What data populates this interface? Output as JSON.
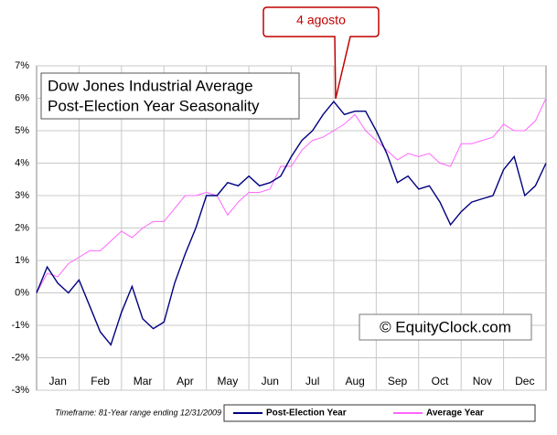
{
  "chart_data": {
    "type": "line",
    "title": [
      "Dow Jones Industrial Average",
      "Post-Election Year Seasonality"
    ],
    "watermark": "© EquityClock.com",
    "annotation": "4 agosto",
    "footnote": "Timeframe: 81-Year range ending 12/31/2009",
    "x": [
      0,
      0.25,
      0.5,
      0.75,
      1,
      1.25,
      1.5,
      1.75,
      2,
      2.25,
      2.5,
      2.75,
      3,
      3.25,
      3.5,
      3.75,
      4,
      4.25,
      4.5,
      4.75,
      5,
      5.25,
      5.5,
      5.75,
      6,
      6.25,
      6.5,
      6.75,
      7,
      7.25,
      7.5,
      7.75,
      8,
      8.25,
      8.5,
      8.75,
      9,
      9.25,
      9.5,
      9.75,
      10,
      10.25,
      10.5,
      10.75,
      11,
      11.25,
      11.5,
      11.75,
      12
    ],
    "xlim": [
      0,
      12
    ],
    "xticks": [
      {
        "value": 0.5,
        "label": "Jan"
      },
      {
        "value": 1.5,
        "label": "Feb"
      },
      {
        "value": 2.5,
        "label": "Mar"
      },
      {
        "value": 3.5,
        "label": "Apr"
      },
      {
        "value": 4.5,
        "label": "May"
      },
      {
        "value": 5.5,
        "label": "Jun"
      },
      {
        "value": 6.5,
        "label": "Jul"
      },
      {
        "value": 7.5,
        "label": "Aug"
      },
      {
        "value": 8.5,
        "label": "Sep"
      },
      {
        "value": 9.5,
        "label": "Oct"
      },
      {
        "value": 10.5,
        "label": "Nov"
      },
      {
        "value": 11.5,
        "label": "Dec"
      }
    ],
    "ylim": [
      -3,
      7
    ],
    "yticks": [
      {
        "value": -3,
        "label": "-3%"
      },
      {
        "value": -2,
        "label": "-2%"
      },
      {
        "value": -1,
        "label": "-1%"
      },
      {
        "value": 0,
        "label": "0%"
      },
      {
        "value": 1,
        "label": "1%"
      },
      {
        "value": 2,
        "label": "2%"
      },
      {
        "value": 3,
        "label": "3%"
      },
      {
        "value": 4,
        "label": "4%"
      },
      {
        "value": 5,
        "label": "5%"
      },
      {
        "value": 6,
        "label": "6%"
      },
      {
        "value": 7,
        "label": "7%"
      }
    ],
    "grid": true,
    "series": [
      {
        "name": "Post-Election Year",
        "color": "#000080",
        "values": [
          0,
          0.8,
          0.3,
          0,
          0.4,
          -0.4,
          -1.2,
          -1.6,
          -0.6,
          0.2,
          -0.8,
          -1.1,
          -0.9,
          0.3,
          1.2,
          2,
          3,
          3,
          3.4,
          3.3,
          3.6,
          3.3,
          3.4,
          3.6,
          4.2,
          4.7,
          5,
          5.5,
          5.9,
          5.5,
          5.6,
          5.6,
          5,
          4.3,
          3.4,
          3.6,
          3.2,
          3.3,
          2.8,
          2.1,
          2.5,
          2.8,
          2.9,
          3,
          3.8,
          4.2,
          3,
          3.3,
          4
        ]
      },
      {
        "name": "Average Year",
        "color": "#ff66ff",
        "values": [
          0,
          0.6,
          0.5,
          0.9,
          1.1,
          1.3,
          1.3,
          1.6,
          1.9,
          1.7,
          2,
          2.2,
          2.2,
          2.6,
          3,
          3,
          3.1,
          3,
          2.4,
          2.8,
          3.1,
          3.1,
          3.2,
          3.9,
          3.9,
          4.4,
          4.7,
          4.8,
          5,
          5.2,
          5.5,
          5,
          4.7,
          4.4,
          4.1,
          4.3,
          4.2,
          4.3,
          4,
          3.9,
          4.6,
          4.6,
          4.7,
          4.8,
          5.2,
          5,
          5,
          5.3,
          6
        ]
      }
    ]
  }
}
